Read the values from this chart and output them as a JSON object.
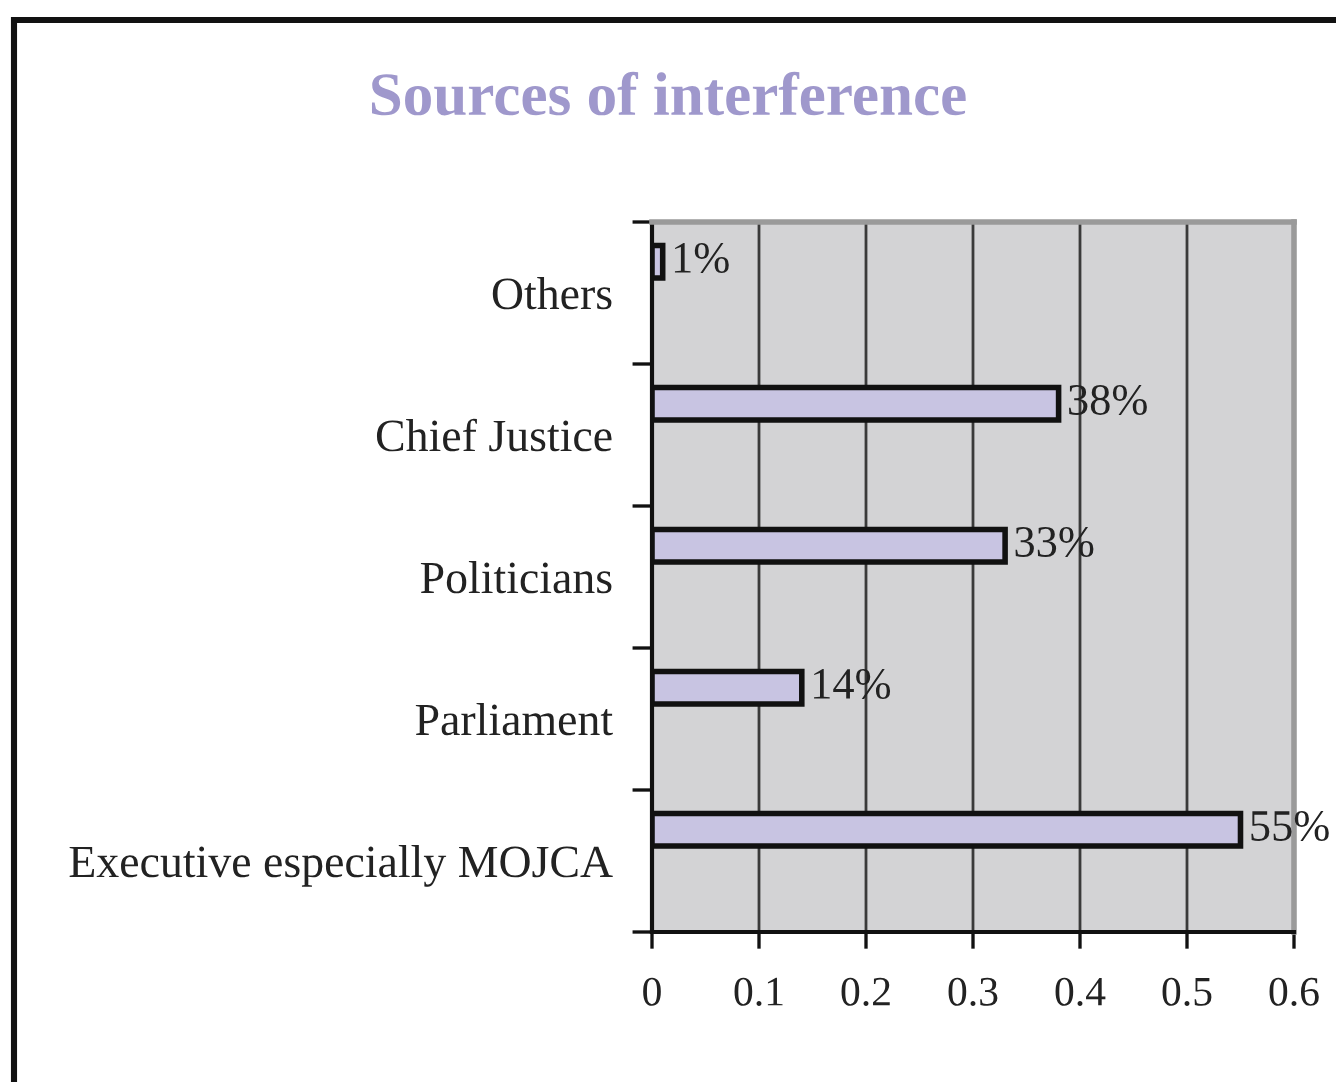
{
  "chart_data": {
    "type": "bar",
    "orientation": "horizontal",
    "title": "Sources of interference",
    "categories": [
      "Others",
      "Chief Justice",
      "Politicians",
      "Parliament",
      "Executive especially MOJCA"
    ],
    "values": [
      0.01,
      0.38,
      0.33,
      0.14,
      0.55
    ],
    "value_labels": [
      "1%",
      "38%",
      "33%",
      "14%",
      "55%"
    ],
    "color": "#c8c4e2",
    "xlim": [
      0,
      0.6
    ],
    "xticks": [
      0,
      0.1,
      0.2,
      0.3,
      0.4,
      0.5,
      0.6
    ],
    "grid": "x"
  }
}
